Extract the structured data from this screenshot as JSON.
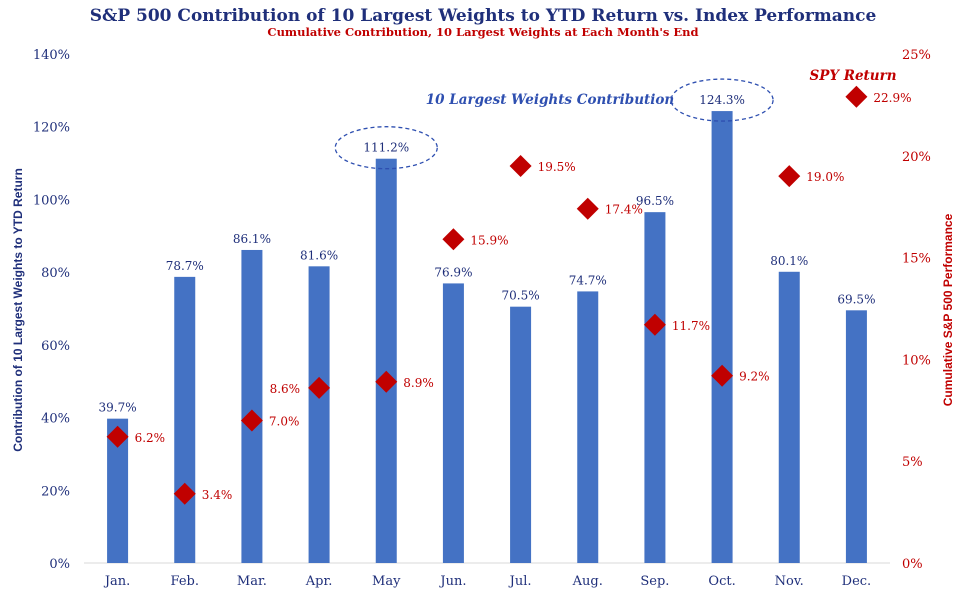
{
  "chart_data": {
    "type": "bar",
    "title": "S&P 500 Contribution of 10 Largest Weights to YTD Return vs. Index Performance",
    "subtitle": "Cumulative Contribution, 10 Largest Weights at Each Month's End",
    "categories": [
      "Jan.",
      "Feb.",
      "Mar.",
      "Apr.",
      "May",
      "Jun.",
      "Jul.",
      "Aug.",
      "Sep.",
      "Oct.",
      "Nov.",
      "Dec."
    ],
    "series": [
      {
        "name": "10 Largest Weights Contribution",
        "kind": "bar",
        "axis": "left",
        "values": [
          39.7,
          78.7,
          86.1,
          81.6,
          111.2,
          76.9,
          70.5,
          74.7,
          96.5,
          124.3,
          80.1,
          69.5
        ],
        "labels": [
          "39.7%",
          "78.7%",
          "86.1%",
          "81.6%",
          "111.2%",
          "76.9%",
          "70.5%",
          "74.7%",
          "96.5%",
          "124.3%",
          "80.1%",
          "69.5%"
        ]
      },
      {
        "name": "SPY Return",
        "kind": "scatter",
        "marker": "diamond",
        "axis": "right",
        "values": [
          6.2,
          3.4,
          7.0,
          8.6,
          8.9,
          15.9,
          19.5,
          17.4,
          11.7,
          9.2,
          19.0,
          22.9
        ],
        "labels": [
          "6.2%",
          "3.4%",
          "7.0%",
          "8.6%",
          "8.9%",
          "15.9%",
          "19.5%",
          "17.4%",
          "11.7%",
          "9.2%",
          "19.0%",
          "22.9%"
        ]
      }
    ],
    "ylabel": "Contribution of 10 Largest Weights to YTD Return",
    "y2label": "Cumulative S&P 500 Performance",
    "ylim": [
      0,
      140
    ],
    "y2lim": [
      0,
      25
    ],
    "yticks": [
      "0%",
      "20%",
      "40%",
      "60%",
      "80%",
      "100%",
      "120%",
      "140%"
    ],
    "y2ticks": [
      "0%",
      "5%",
      "10%",
      "15%",
      "20%",
      "25%"
    ],
    "annotations": {
      "bars_note": "10 Largest Weights Contribution",
      "points_note": "SPY Return",
      "highlighted": [
        "May",
        "Oct."
      ]
    },
    "colors": {
      "bar": "#4472c4",
      "point": "#c00000",
      "title": "#1f2f7a",
      "highlight": "#2e4fb0"
    }
  }
}
